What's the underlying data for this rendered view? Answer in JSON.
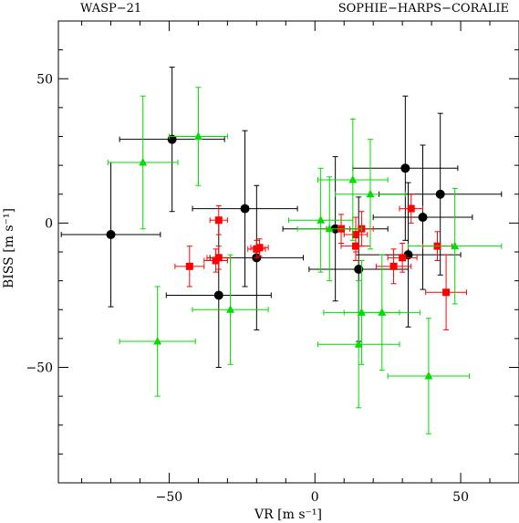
{
  "chart_data": {
    "type": "scatter",
    "title_left": "WASP−21",
    "title_right": "SOPHIE−HARPS−CORALIE",
    "xlabel": "VR [m s⁻¹]",
    "ylabel": "BISS [m s⁻¹]",
    "xlim": [
      -88,
      70
    ],
    "ylim": [
      -90,
      70
    ],
    "xticks": [
      -50,
      0,
      50
    ],
    "xtick_labels": [
      "−50",
      "0",
      "50"
    ],
    "yticks": [
      -50,
      0,
      50
    ],
    "ytick_labels": [
      "−50",
      "0",
      "50"
    ],
    "x_minor_step": 10,
    "y_minor_step": 10,
    "grid": false,
    "series": [
      {
        "marker": "circle",
        "color": "#000000",
        "points": [
          {
            "x": -70,
            "y": -4,
            "xerr": 17,
            "yerr": 25
          },
          {
            "x": -49,
            "y": 29,
            "xerr": 18,
            "yerr": 25
          },
          {
            "x": -33,
            "y": -25,
            "xerr": 18,
            "yerr": 25
          },
          {
            "x": -24,
            "y": 5,
            "xerr": 18,
            "yerr": 27
          },
          {
            "x": -20,
            "y": -12,
            "xerr": 16,
            "yerr": 25
          },
          {
            "x": 7,
            "y": -2,
            "xerr": 18,
            "yerr": 25
          },
          {
            "x": 15,
            "y": -16,
            "xerr": 17,
            "yerr": 25
          },
          {
            "x": 31,
            "y": 19,
            "xerr": 18,
            "yerr": 25
          },
          {
            "x": 32,
            "y": -11,
            "xerr": 18,
            "yerr": 25
          },
          {
            "x": 37,
            "y": 2,
            "xerr": 17,
            "yerr": 25
          },
          {
            "x": 43,
            "y": 10,
            "xerr": 21,
            "yerr": 28
          }
        ]
      },
      {
        "marker": "square",
        "color": "#ff0000",
        "points": [
          {
            "x": -43,
            "y": -15,
            "xerr": 5,
            "yerr": 7
          },
          {
            "x": -33,
            "y": 1,
            "xerr": 3,
            "yerr": 5
          },
          {
            "x": -34,
            "y": -13,
            "xerr": 4,
            "yerr": 4
          },
          {
            "x": -33,
            "y": -12,
            "xerr": 4,
            "yerr": 4
          },
          {
            "x": -20,
            "y": -9,
            "xerr": 3,
            "yerr": 3
          },
          {
            "x": -19,
            "y": -8.5,
            "xerr": 3,
            "yerr": 3
          },
          {
            "x": 9,
            "y": -2,
            "xerr": 5,
            "yerr": 5
          },
          {
            "x": 14,
            "y": -4,
            "xerr": 4,
            "yerr": 6
          },
          {
            "x": 14,
            "y": -8,
            "xerr": 5,
            "yerr": 5
          },
          {
            "x": 16,
            "y": -2,
            "xerr": 4,
            "yerr": 6
          },
          {
            "x": 27,
            "y": -15,
            "xerr": 6,
            "yerr": 6
          },
          {
            "x": 30,
            "y": -12,
            "xerr": 5,
            "yerr": 5
          },
          {
            "x": 33,
            "y": 5,
            "xerr": 4,
            "yerr": 5
          },
          {
            "x": 42,
            "y": -8,
            "xerr": 5,
            "yerr": 5
          },
          {
            "x": 45,
            "y": -24,
            "xerr": 7,
            "yerr": 13
          }
        ]
      },
      {
        "marker": "triangle",
        "color": "#00dd00",
        "points": [
          {
            "x": -59,
            "y": 21,
            "xerr": 12,
            "yerr": 23
          },
          {
            "x": -40,
            "y": 30,
            "xerr": 10,
            "yerr": 17
          },
          {
            "x": -54,
            "y": -41,
            "xerr": 13,
            "yerr": 19
          },
          {
            "x": -29,
            "y": -30,
            "xerr": 13,
            "yerr": 19
          },
          {
            "x": 2,
            "y": 1,
            "xerr": 11,
            "yerr": 18
          },
          {
            "x": 5,
            "y": -2,
            "xerr": 11,
            "yerr": 18
          },
          {
            "x": 13,
            "y": 15,
            "xerr": 12,
            "yerr": 21
          },
          {
            "x": 15,
            "y": -42,
            "xerr": 14,
            "yerr": 22
          },
          {
            "x": 16,
            "y": -31,
            "xerr": 13,
            "yerr": 18
          },
          {
            "x": 19,
            "y": 10,
            "xerr": 12,
            "yerr": 19
          },
          {
            "x": 23,
            "y": -31,
            "xerr": 13,
            "yerr": 20
          },
          {
            "x": 39,
            "y": -53,
            "xerr": 14,
            "yerr": 20
          },
          {
            "x": 48,
            "y": -8,
            "xerr": 16,
            "yerr": 20
          }
        ]
      }
    ]
  }
}
